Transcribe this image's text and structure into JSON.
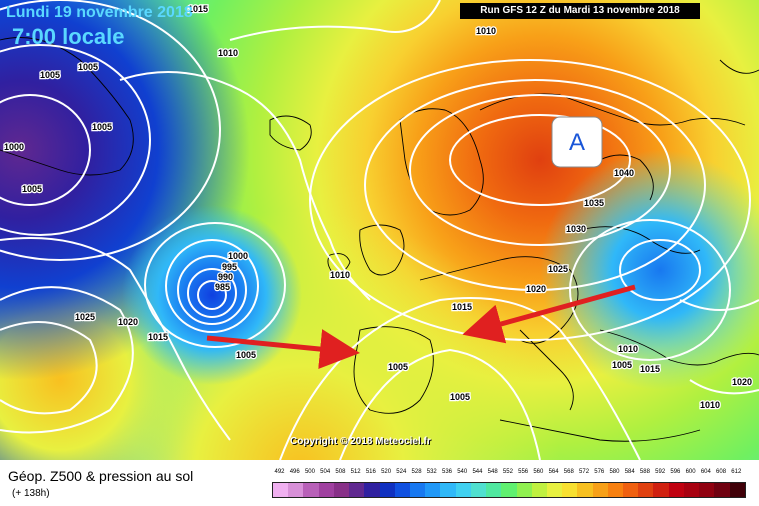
{
  "header": {
    "date": "Lundi 19 novembre 2018",
    "time": "7:00 locale",
    "run": "Run GFS 12 Z du Mardi 13 novembre 2018"
  },
  "map": {
    "high_marker": "A",
    "pressure_labels": [
      "1015",
      "1010",
      "1010",
      "1005",
      "1005",
      "1000",
      "1005",
      "1005",
      "1000",
      "995",
      "990",
      "985",
      "1025",
      "1020",
      "1015",
      "1005",
      "1010",
      "1015",
      "1025",
      "1020",
      "1030",
      "1035",
      "1040",
      "1010",
      "1005",
      "1005",
      "1005",
      "1010",
      "1020",
      "1015"
    ],
    "arrow_color": "#e02020"
  },
  "copyright": "Copyright © 2018 Meteociel.fr",
  "footer": {
    "title": "Géop. Z500 & pression au sol",
    "forecast_hour": "(+ 138h)"
  },
  "legend": {
    "values": [
      "492",
      "496",
      "500",
      "504",
      "508",
      "512",
      "516",
      "520",
      "524",
      "528",
      "532",
      "536",
      "540",
      "544",
      "548",
      "552",
      "556",
      "560",
      "564",
      "568",
      "572",
      "576",
      "580",
      "584",
      "588",
      "592",
      "596",
      "600",
      "604",
      "608",
      "612"
    ],
    "colors": [
      "#f0b0f0",
      "#d890d8",
      "#b860b8",
      "#a040a0",
      "#883088",
      "#602890",
      "#3020a0",
      "#1030c0",
      "#1050e0",
      "#1878f0",
      "#2098f8",
      "#30b8f8",
      "#40d0f0",
      "#50e0d0",
      "#50e8a0",
      "#60f070",
      "#90f050",
      "#c0f040",
      "#e8f040",
      "#f8e030",
      "#f8c020",
      "#f8a018",
      "#f88010",
      "#f06010",
      "#e04010",
      "#d02010",
      "#c00010",
      "#a80010",
      "#900010",
      "#700010",
      "#400008"
    ]
  }
}
